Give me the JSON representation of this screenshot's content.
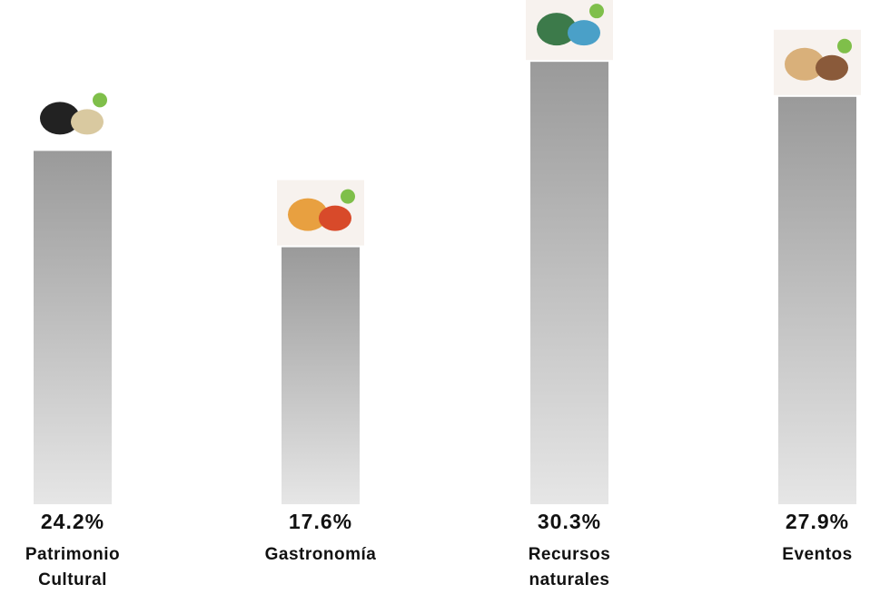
{
  "chart_data": {
    "type": "bar",
    "categories": [
      "Patrimonio Cultural",
      "Gastronomía",
      "Recursos naturales",
      "Eventos"
    ],
    "values": [
      24.2,
      17.6,
      30.3,
      27.9
    ],
    "value_labels": [
      "24.2%",
      "17.6%",
      "30.3%",
      "27.9%"
    ]
  }
}
